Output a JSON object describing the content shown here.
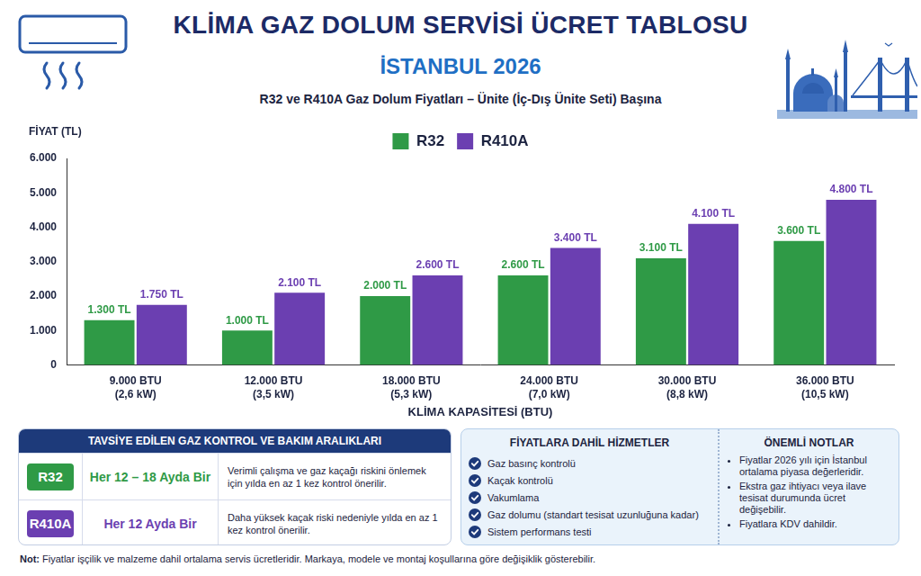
{
  "header": {
    "title": "KLİMA GAZ DOLUM SERVİSİ ÜCRET TABLOSU",
    "subtitle": "İSTANBUL 2026",
    "description": "R32 ve R410A Gaz Dolum Fiyatları – Ünite (İç-Dış Ünite Seti) Başına"
  },
  "chart_data": {
    "type": "bar",
    "y_label": "FİYAT (TL)",
    "x_label": "KLİMA KAPASİTESİ (BTU)",
    "categories": [
      [
        "9.000 BTU",
        "(2,6 kW)"
      ],
      [
        "12.000 BTU",
        "(3,5 kW)"
      ],
      [
        "18.000 BTU",
        "(5,3 kW)"
      ],
      [
        "24.000 BTU",
        "(7,0 kW)"
      ],
      [
        "30.000 BTU",
        "(8,8 kW)"
      ],
      [
        "36.000 BTU",
        "(10,5 kW)"
      ]
    ],
    "series": [
      {
        "name": "R32",
        "color": "#2f9a46",
        "values": [
          1300,
          1000,
          2000,
          2600,
          3100,
          3600
        ],
        "value_labels": [
          "1.300 TL",
          "1.000 TL",
          "2.000 TL",
          "2.600 TL",
          "3.100 TL",
          "3.600 TL"
        ]
      },
      {
        "name": "R410A",
        "color": "#6b3fb1",
        "values": [
          1750,
          2100,
          2600,
          3400,
          4100,
          4800
        ],
        "value_labels": [
          "1.750 TL",
          "2.100 TL",
          "2.600 TL",
          "3.400 TL",
          "4.100 TL",
          "4.800 TL"
        ]
      }
    ],
    "ylim": [
      0,
      6000
    ],
    "yticks": [
      0,
      {
        "value": 1000,
        "label": "1.000"
      },
      {
        "value": 2000,
        "label": "2.000"
      },
      {
        "value": 3000,
        "label": "3.000"
      },
      {
        "value": 4000,
        "label": "4.000"
      },
      {
        "value": 5000,
        "label": "5.000"
      },
      {
        "value": 6000,
        "label": "6.000"
      }
    ],
    "grid": false,
    "legend": "top",
    "data_labels": true
  },
  "intervals": {
    "title": "TAVSİYE EDİLEN GAZ KONTROL VE BAKIM ARALIKLARI",
    "rows": [
      {
        "refrigerant": "R32",
        "color": "#2f9a46",
        "interval": "Her 12 – 18 Ayda Bir",
        "note": "Verimli çalışma ve gaz kaçağı riskini önlemek için yılda en az 1 kez kontrol önerilir."
      },
      {
        "refrigerant": "R410A",
        "color": "#6b3fb1",
        "interval": "Her 12 Ayda Bir",
        "note": "Daha yüksek kaçak riski nedeniyle yılda en az 1 kez kontrol önerilir."
      }
    ]
  },
  "services": {
    "title": "FİYATLARA DAHİL HİZMETLER",
    "items": [
      "Gaz basınç kontrolü",
      "Kaçak kontrolü",
      "Vakumlama",
      "Gaz dolumu (standart tesisat uzunluğuna kadar)",
      "Sistem performans testi"
    ]
  },
  "notes": {
    "title": "ÖNEMLİ NOTLAR",
    "items": [
      "Fiyatlar 2026 yılı için İstanbul ortalama piyasa değerleridir.",
      "Ekstra gaz ihtiyacı veya ilave tesisat durumunda ücret değişebilir.",
      "Fiyatlara KDV dahildir."
    ]
  },
  "footer": {
    "label": "Not:",
    "text": "Fiyatlar işçilik ve malzeme dahil ortalama servis ücretleridir. Markaya, modele ve montaj koşullarına göre değişiklik gösterebilir."
  }
}
